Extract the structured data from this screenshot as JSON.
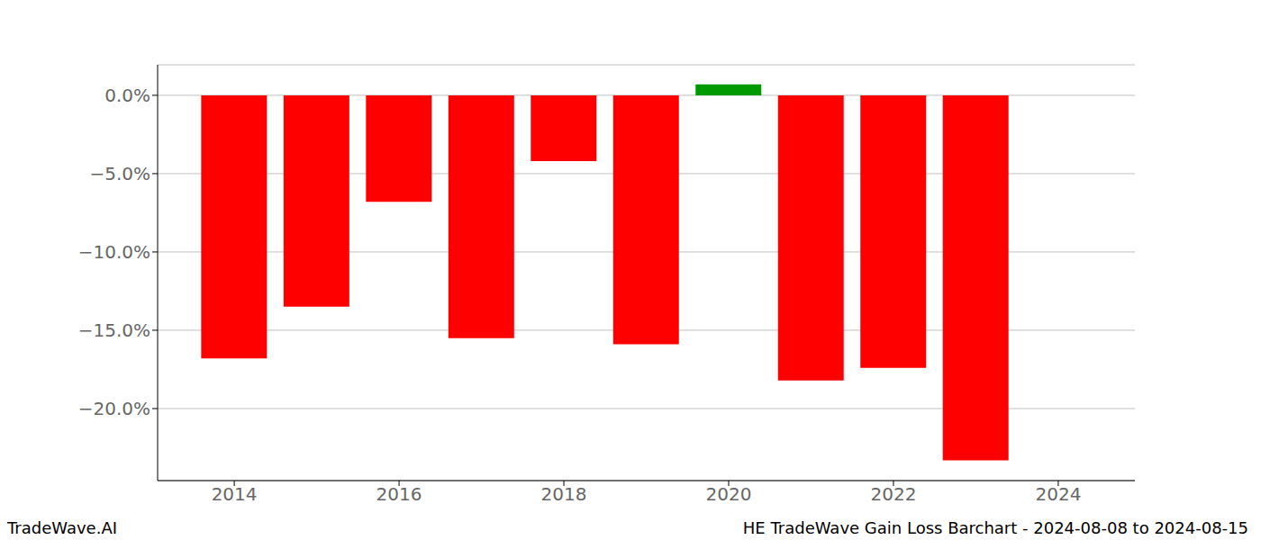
{
  "chart_data": {
    "type": "bar",
    "annotations": [
      "TradeWave.AI",
      "HE TradeWave Gain Loss Barchart - 2024-08-08 to 2024-08-15"
    ],
    "x": [
      2014,
      2015,
      2016,
      2017,
      2018,
      2019,
      2020,
      2021,
      2022,
      2023
    ],
    "values": [
      -16.8,
      -13.5,
      -6.8,
      -15.5,
      -4.2,
      -15.9,
      0.7,
      -18.2,
      -17.4,
      -23.3
    ],
    "colors": [
      "#ff0000",
      "#ff0000",
      "#ff0000",
      "#ff0000",
      "#ff0000",
      "#ff0000",
      "#009900",
      "#ff0000",
      "#ff0000",
      "#ff0000"
    ],
    "xlim": [
      2013.07,
      2024.93
    ],
    "xticks": [
      2014,
      2016,
      2018,
      2020,
      2022,
      2024
    ],
    "ylim": [
      -24.6,
      1.95
    ],
    "yticks": [
      {
        "value": 0,
        "label": "0.0%"
      },
      {
        "value": -5,
        "label": "−5.0%"
      },
      {
        "value": -10,
        "label": "−10.0%"
      },
      {
        "value": -15,
        "label": "−15.0%"
      },
      {
        "value": -20,
        "label": "−20.0%"
      }
    ],
    "grid": true
  }
}
